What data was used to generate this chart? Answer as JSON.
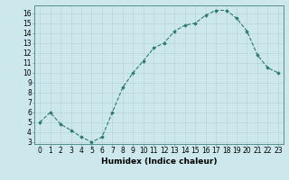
{
  "x": [
    0,
    1,
    2,
    3,
    4,
    5,
    6,
    7,
    8,
    9,
    10,
    11,
    12,
    13,
    14,
    15,
    16,
    17,
    18,
    19,
    20,
    21,
    22,
    23
  ],
  "y": [
    5.0,
    6.0,
    4.8,
    4.2,
    3.5,
    3.0,
    3.5,
    6.0,
    8.5,
    10.0,
    11.2,
    12.5,
    13.0,
    14.2,
    14.8,
    15.0,
    15.8,
    16.3,
    16.3,
    15.5,
    14.2,
    11.8,
    10.5,
    10.0
  ],
  "xlabel": "Humidex (Indice chaleur)",
  "xlim": [
    -0.5,
    23.5
  ],
  "ylim": [
    2.8,
    16.8
  ],
  "yticks": [
    3,
    4,
    5,
    6,
    7,
    8,
    9,
    10,
    11,
    12,
    13,
    14,
    15,
    16
  ],
  "xticks": [
    0,
    1,
    2,
    3,
    4,
    5,
    6,
    7,
    8,
    9,
    10,
    11,
    12,
    13,
    14,
    15,
    16,
    17,
    18,
    19,
    20,
    21,
    22,
    23
  ],
  "line_color": "#2a7b6e",
  "bg_color": "#cde8ec",
  "grid_color": "#b8d4d8",
  "tick_fontsize": 5.5,
  "label_fontsize": 6.5
}
